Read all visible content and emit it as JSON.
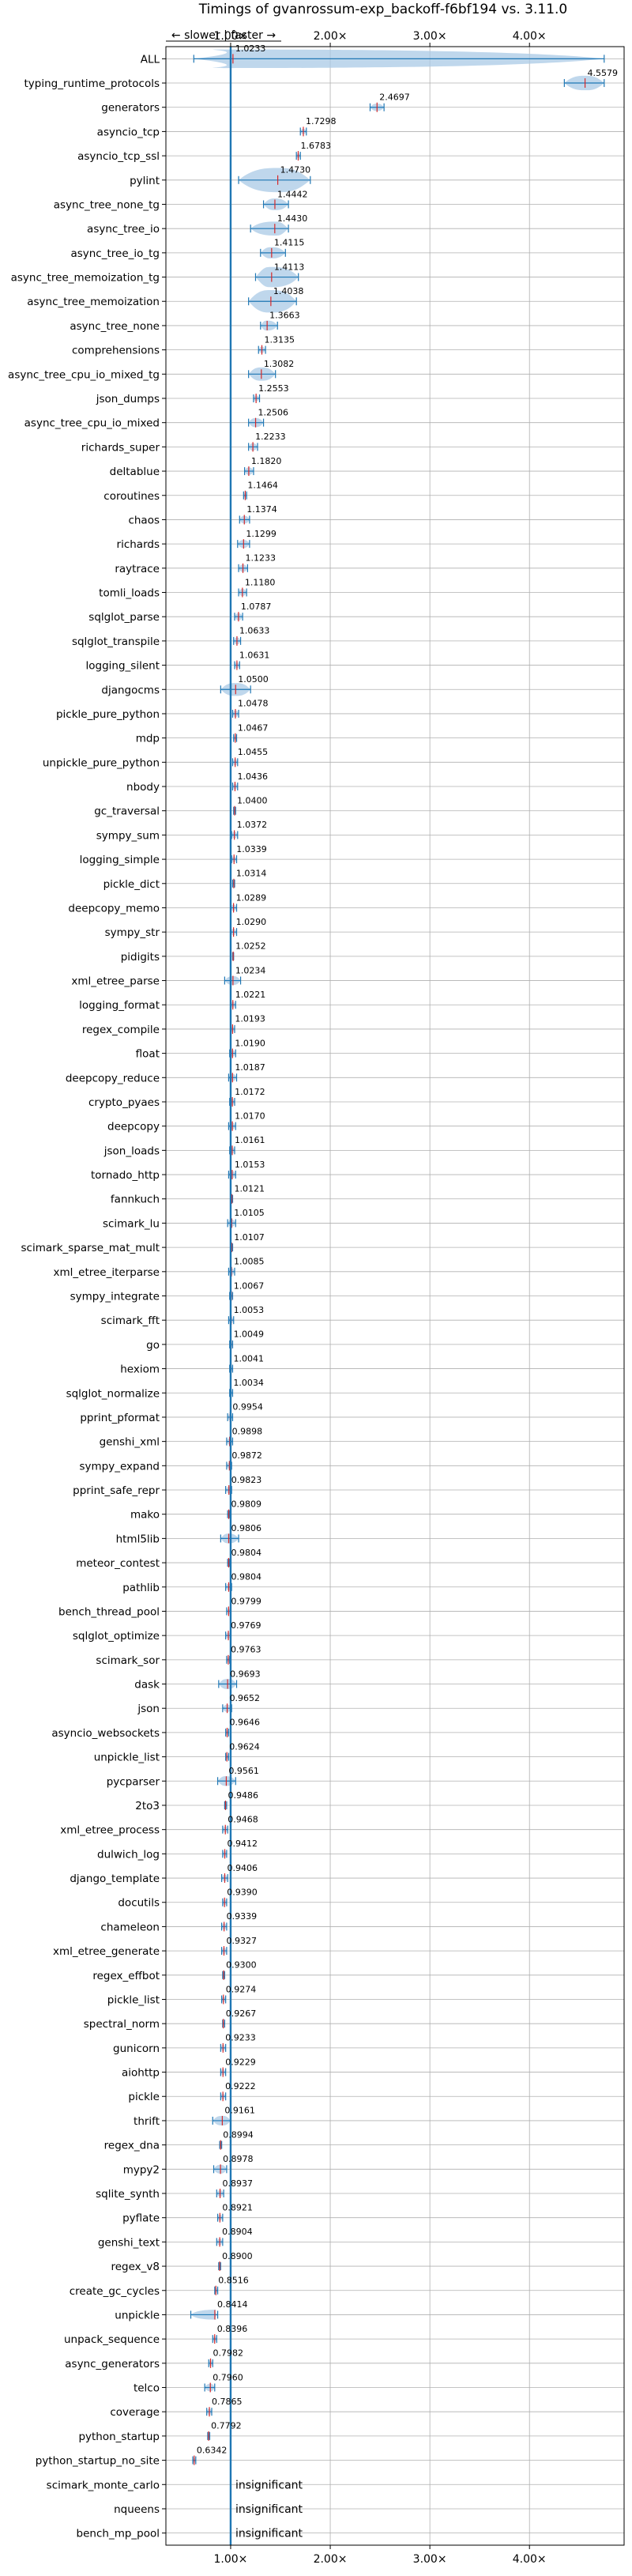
{
  "chart_data": {
    "type": "violin",
    "title": "Timings of gvanrossum-exp_backoff-f6bf194 vs. 3.11.0",
    "direction_label": "← slower | faster →",
    "x_ticks": [
      {
        "value": 1,
        "label": "1.00×"
      },
      {
        "value": 2,
        "label": "2.00×"
      },
      {
        "value": 3,
        "label": "3.00×"
      },
      {
        "value": 4,
        "label": "4.00×"
      }
    ],
    "xlim": [
      0.35,
      4.95
    ],
    "reference_line": 1.0,
    "grid": true,
    "insignificant_label": "insignificant",
    "benchmarks": [
      {
        "name": "ALL",
        "value": 1.0233,
        "label": "1.0233",
        "lo": 0.63,
        "hi": 4.75,
        "spread": 0.09
      },
      {
        "name": "typing_runtime_protocols",
        "value": 4.5579,
        "label": "4.5579",
        "lo": 4.35,
        "hi": 4.75,
        "spread": 0.14
      },
      {
        "name": "generators",
        "value": 2.4697,
        "label": "2.4697",
        "lo": 2.4,
        "hi": 2.54,
        "spread": 0.07
      },
      {
        "name": "asyncio_tcp",
        "value": 1.7298,
        "label": "1.7298",
        "lo": 1.7,
        "hi": 1.76,
        "spread": 0.04
      },
      {
        "name": "asyncio_tcp_ssl",
        "value": 1.6783,
        "label": "1.6783",
        "lo": 1.66,
        "hi": 1.7,
        "spread": 0.03
      },
      {
        "name": "pylint",
        "value": 1.473,
        "label": "1.4730",
        "lo": 1.08,
        "hi": 1.8,
        "spread": 0.3
      },
      {
        "name": "async_tree_none_tg",
        "value": 1.4442,
        "label": "1.4442",
        "lo": 1.33,
        "hi": 1.58,
        "spread": 0.16
      },
      {
        "name": "async_tree_io",
        "value": 1.443,
        "label": "1.4430",
        "lo": 1.2,
        "hi": 1.58,
        "spread": 0.14
      },
      {
        "name": "async_tree_io_tg",
        "value": 1.4115,
        "label": "1.4115",
        "lo": 1.3,
        "hi": 1.55,
        "spread": 0.14
      },
      {
        "name": "async_tree_memoization_tg",
        "value": 1.4113,
        "label": "1.4113",
        "lo": 1.25,
        "hi": 1.68,
        "spread": 0.28
      },
      {
        "name": "async_tree_memoization",
        "value": 1.4038,
        "label": "1.4038",
        "lo": 1.18,
        "hi": 1.66,
        "spread": 0.3
      },
      {
        "name": "async_tree_none",
        "value": 1.3663,
        "label": "1.3663",
        "lo": 1.3,
        "hi": 1.47,
        "spread": 0.16
      },
      {
        "name": "comprehensions",
        "value": 1.3135,
        "label": "1.3135",
        "lo": 1.28,
        "hi": 1.35,
        "spread": 0.08
      },
      {
        "name": "async_tree_cpu_io_mixed_tg",
        "value": 1.3082,
        "label": "1.3082",
        "lo": 1.18,
        "hi": 1.45,
        "spread": 0.2
      },
      {
        "name": "json_dumps",
        "value": 1.2553,
        "label": "1.2553",
        "lo": 1.23,
        "hi": 1.29,
        "spread": 0.07
      },
      {
        "name": "async_tree_cpu_io_mixed",
        "value": 1.2506,
        "label": "1.2506",
        "lo": 1.18,
        "hi": 1.33,
        "spread": 0.14
      },
      {
        "name": "richards_super",
        "value": 1.2233,
        "label": "1.2233",
        "lo": 1.18,
        "hi": 1.27,
        "spread": 0.12
      },
      {
        "name": "deltablue",
        "value": 1.182,
        "label": "1.1820",
        "lo": 1.14,
        "hi": 1.23,
        "spread": 0.12
      },
      {
        "name": "coroutines",
        "value": 1.1464,
        "label": "1.1464",
        "lo": 1.13,
        "hi": 1.16,
        "spread": 0.05
      },
      {
        "name": "chaos",
        "value": 1.1374,
        "label": "1.1374",
        "lo": 1.09,
        "hi": 1.19,
        "spread": 0.12
      },
      {
        "name": "richards",
        "value": 1.1299,
        "label": "1.1299",
        "lo": 1.07,
        "hi": 1.19,
        "spread": 0.12
      },
      {
        "name": "raytrace",
        "value": 1.1233,
        "label": "1.1233",
        "lo": 1.08,
        "hi": 1.17,
        "spread": 0.12
      },
      {
        "name": "tomli_loads",
        "value": 1.118,
        "label": "1.1180",
        "lo": 1.08,
        "hi": 1.16,
        "spread": 0.12
      },
      {
        "name": "sqlglot_parse",
        "value": 1.0787,
        "label": "1.0787",
        "lo": 1.04,
        "hi": 1.12,
        "spread": 0.12
      },
      {
        "name": "sqlglot_transpile",
        "value": 1.0633,
        "label": "1.0633",
        "lo": 1.03,
        "hi": 1.1,
        "spread": 0.12
      },
      {
        "name": "logging_silent",
        "value": 1.0631,
        "label": "1.0631",
        "lo": 1.04,
        "hi": 1.09,
        "spread": 0.08
      },
      {
        "name": "djangocms",
        "value": 1.05,
        "label": "1.0500",
        "lo": 0.9,
        "hi": 1.2,
        "spread": 0.16
      },
      {
        "name": "pickle_pure_python",
        "value": 1.0478,
        "label": "1.0478",
        "lo": 1.02,
        "hi": 1.08,
        "spread": 0.1
      },
      {
        "name": "mdp",
        "value": 1.0467,
        "label": "1.0467",
        "lo": 1.03,
        "hi": 1.06,
        "spread": 0.06
      },
      {
        "name": "unpickle_pure_python",
        "value": 1.0455,
        "label": "1.0455",
        "lo": 1.02,
        "hi": 1.07,
        "spread": 0.1
      },
      {
        "name": "nbody",
        "value": 1.0436,
        "label": "1.0436",
        "lo": 1.02,
        "hi": 1.07,
        "spread": 0.08
      },
      {
        "name": "gc_traversal",
        "value": 1.04,
        "label": "1.0400",
        "lo": 1.03,
        "hi": 1.05,
        "spread": 0.04
      },
      {
        "name": "sympy_sum",
        "value": 1.0372,
        "label": "1.0372",
        "lo": 1.01,
        "hi": 1.07,
        "spread": 0.1
      },
      {
        "name": "logging_simple",
        "value": 1.0339,
        "label": "1.0339",
        "lo": 1.01,
        "hi": 1.06,
        "spread": 0.08
      },
      {
        "name": "pickle_dict",
        "value": 1.0314,
        "label": "1.0314",
        "lo": 1.02,
        "hi": 1.04,
        "spread": 0.04
      },
      {
        "name": "deepcopy_memo",
        "value": 1.0289,
        "label": "1.0289",
        "lo": 1.0,
        "hi": 1.06,
        "spread": 0.1
      },
      {
        "name": "sympy_str",
        "value": 1.029,
        "label": "1.0290",
        "lo": 1.0,
        "hi": 1.06,
        "spread": 0.1
      },
      {
        "name": "pidigits",
        "value": 1.0252,
        "label": "1.0252",
        "lo": 1.02,
        "hi": 1.03,
        "spread": 0.03
      },
      {
        "name": "xml_etree_parse",
        "value": 1.0234,
        "label": "1.0234",
        "lo": 0.94,
        "hi": 1.1,
        "spread": 0.12
      },
      {
        "name": "logging_format",
        "value": 1.0221,
        "label": "1.0221",
        "lo": 1.0,
        "hi": 1.05,
        "spread": 0.08
      },
      {
        "name": "regex_compile",
        "value": 1.0193,
        "label": "1.0193",
        "lo": 1.0,
        "hi": 1.04,
        "spread": 0.08
      },
      {
        "name": "float",
        "value": 1.019,
        "label": "1.0190",
        "lo": 0.99,
        "hi": 1.05,
        "spread": 0.1
      },
      {
        "name": "deepcopy_reduce",
        "value": 1.0187,
        "label": "1.0187",
        "lo": 0.98,
        "hi": 1.06,
        "spread": 0.12
      },
      {
        "name": "crypto_pyaes",
        "value": 1.0172,
        "label": "1.0172",
        "lo": 0.99,
        "hi": 1.04,
        "spread": 0.1
      },
      {
        "name": "deepcopy",
        "value": 1.017,
        "label": "1.0170",
        "lo": 0.98,
        "hi": 1.05,
        "spread": 0.1
      },
      {
        "name": "json_loads",
        "value": 1.0161,
        "label": "1.0161",
        "lo": 0.99,
        "hi": 1.04,
        "spread": 0.1
      },
      {
        "name": "tornado_http",
        "value": 1.0153,
        "label": "1.0153",
        "lo": 0.98,
        "hi": 1.05,
        "spread": 0.12
      },
      {
        "name": "fannkuch",
        "value": 1.0121,
        "label": "1.0121",
        "lo": 1.0,
        "hi": 1.02,
        "spread": 0.06
      },
      {
        "name": "scimark_lu",
        "value": 1.0105,
        "label": "1.0105",
        "lo": 0.97,
        "hi": 1.05,
        "spread": 0.12
      },
      {
        "name": "scimark_sparse_mat_mult",
        "value": 1.0107,
        "label": "1.0107",
        "lo": 1.0,
        "hi": 1.02,
        "spread": 0.04
      },
      {
        "name": "xml_etree_iterparse",
        "value": 1.0085,
        "label": "1.0085",
        "lo": 0.98,
        "hi": 1.04,
        "spread": 0.1
      },
      {
        "name": "sympy_integrate",
        "value": 1.0067,
        "label": "1.0067",
        "lo": 0.99,
        "hi": 1.02,
        "spread": 0.06
      },
      {
        "name": "scimark_fft",
        "value": 1.0053,
        "label": "1.0053",
        "lo": 0.98,
        "hi": 1.03,
        "spread": 0.1
      },
      {
        "name": "go",
        "value": 1.0049,
        "label": "1.0049",
        "lo": 0.99,
        "hi": 1.02,
        "spread": 0.08
      },
      {
        "name": "hexiom",
        "value": 1.0041,
        "label": "1.0041",
        "lo": 0.99,
        "hi": 1.02,
        "spread": 0.06
      },
      {
        "name": "sqlglot_normalize",
        "value": 1.0034,
        "label": "1.0034",
        "lo": 0.99,
        "hi": 1.02,
        "spread": 0.06
      },
      {
        "name": "pprint_pformat",
        "value": 0.9954,
        "label": "0.9954",
        "lo": 0.97,
        "hi": 1.02,
        "spread": 0.1
      },
      {
        "name": "genshi_xml",
        "value": 0.9898,
        "label": "0.9898",
        "lo": 0.96,
        "hi": 1.02,
        "spread": 0.1
      },
      {
        "name": "sympy_expand",
        "value": 0.9872,
        "label": "0.9872",
        "lo": 0.96,
        "hi": 1.01,
        "spread": 0.08
      },
      {
        "name": "pprint_safe_repr",
        "value": 0.9823,
        "label": "0.9823",
        "lo": 0.95,
        "hi": 1.01,
        "spread": 0.1
      },
      {
        "name": "mako",
        "value": 0.9809,
        "label": "0.9809",
        "lo": 0.97,
        "hi": 0.99,
        "spread": 0.05
      },
      {
        "name": "html5lib",
        "value": 0.9806,
        "label": "0.9806",
        "lo": 0.9,
        "hi": 1.08,
        "spread": 0.14
      },
      {
        "name": "meteor_contest",
        "value": 0.9804,
        "label": "0.9804",
        "lo": 0.97,
        "hi": 0.99,
        "spread": 0.05
      },
      {
        "name": "pathlib",
        "value": 0.9804,
        "label": "0.9804",
        "lo": 0.95,
        "hi": 1.01,
        "spread": 0.1
      },
      {
        "name": "bench_thread_pool",
        "value": 0.9799,
        "label": "0.9799",
        "lo": 0.96,
        "hi": 1.0,
        "spread": 0.06
      },
      {
        "name": "sqlglot_optimize",
        "value": 0.9769,
        "label": "0.9769",
        "lo": 0.95,
        "hi": 1.0,
        "spread": 0.1
      },
      {
        "name": "scimark_sor",
        "value": 0.9763,
        "label": "0.9763",
        "lo": 0.96,
        "hi": 0.99,
        "spread": 0.06
      },
      {
        "name": "dask",
        "value": 0.9693,
        "label": "0.9693",
        "lo": 0.88,
        "hi": 1.06,
        "spread": 0.16
      },
      {
        "name": "json",
        "value": 0.9652,
        "label": "0.9652",
        "lo": 0.92,
        "hi": 1.01,
        "spread": 0.12
      },
      {
        "name": "asyncio_websockets",
        "value": 0.9646,
        "label": "0.9646",
        "lo": 0.95,
        "hi": 0.98,
        "spread": 0.06
      },
      {
        "name": "unpickle_list",
        "value": 0.9624,
        "label": "0.9624",
        "lo": 0.95,
        "hi": 0.98,
        "spread": 0.06
      },
      {
        "name": "pycparser",
        "value": 0.9561,
        "label": "0.9561",
        "lo": 0.87,
        "hi": 1.05,
        "spread": 0.14
      },
      {
        "name": "2to3",
        "value": 0.9486,
        "label": "0.9486",
        "lo": 0.94,
        "hi": 0.96,
        "spread": 0.04
      },
      {
        "name": "xml_etree_process",
        "value": 0.9468,
        "label": "0.9468",
        "lo": 0.92,
        "hi": 0.97,
        "spread": 0.1
      },
      {
        "name": "dulwich_log",
        "value": 0.9412,
        "label": "0.9412",
        "lo": 0.92,
        "hi": 0.96,
        "spread": 0.08
      },
      {
        "name": "django_template",
        "value": 0.9406,
        "label": "0.9406",
        "lo": 0.91,
        "hi": 0.97,
        "spread": 0.1
      },
      {
        "name": "docutils",
        "value": 0.939,
        "label": "0.9390",
        "lo": 0.92,
        "hi": 0.96,
        "spread": 0.08
      },
      {
        "name": "chameleon",
        "value": 0.9339,
        "label": "0.9339",
        "lo": 0.91,
        "hi": 0.96,
        "spread": 0.1
      },
      {
        "name": "xml_etree_generate",
        "value": 0.9327,
        "label": "0.9327",
        "lo": 0.91,
        "hi": 0.96,
        "spread": 0.1
      },
      {
        "name": "regex_effbot",
        "value": 0.93,
        "label": "0.9300",
        "lo": 0.92,
        "hi": 0.94,
        "spread": 0.05
      },
      {
        "name": "pickle_list",
        "value": 0.9274,
        "label": "0.9274",
        "lo": 0.91,
        "hi": 0.95,
        "spread": 0.08
      },
      {
        "name": "spectral_norm",
        "value": 0.9267,
        "label": "0.9267",
        "lo": 0.92,
        "hi": 0.94,
        "spread": 0.04
      },
      {
        "name": "gunicorn",
        "value": 0.9233,
        "label": "0.9233",
        "lo": 0.9,
        "hi": 0.95,
        "spread": 0.1
      },
      {
        "name": "aiohttp",
        "value": 0.9229,
        "label": "0.9229",
        "lo": 0.9,
        "hi": 0.95,
        "spread": 0.1
      },
      {
        "name": "pickle",
        "value": 0.9222,
        "label": "0.9222",
        "lo": 0.9,
        "hi": 0.95,
        "spread": 0.08
      },
      {
        "name": "thrift",
        "value": 0.9161,
        "label": "0.9161",
        "lo": 0.82,
        "hi": 1.0,
        "spread": 0.14
      },
      {
        "name": "regex_dna",
        "value": 0.8994,
        "label": "0.8994",
        "lo": 0.89,
        "hi": 0.91,
        "spread": 0.03
      },
      {
        "name": "mypy2",
        "value": 0.8978,
        "label": "0.8978",
        "lo": 0.83,
        "hi": 0.96,
        "spread": 0.14
      },
      {
        "name": "sqlite_synth",
        "value": 0.8937,
        "label": "0.8937",
        "lo": 0.86,
        "hi": 0.93,
        "spread": 0.1
      },
      {
        "name": "pyflate",
        "value": 0.8921,
        "label": "0.8921",
        "lo": 0.87,
        "hi": 0.92,
        "spread": 0.08
      },
      {
        "name": "genshi_text",
        "value": 0.8904,
        "label": "0.8904",
        "lo": 0.86,
        "hi": 0.92,
        "spread": 0.1
      },
      {
        "name": "regex_v8",
        "value": 0.89,
        "label": "0.8900",
        "lo": 0.88,
        "hi": 0.9,
        "spread": 0.03
      },
      {
        "name": "create_gc_cycles",
        "value": 0.8516,
        "label": "0.8516",
        "lo": 0.84,
        "hi": 0.87,
        "spread": 0.06
      },
      {
        "name": "unpickle",
        "value": 0.8414,
        "label": "0.8414",
        "lo": 0.6,
        "hi": 0.87,
        "spread": 0.08
      },
      {
        "name": "unpack_sequence",
        "value": 0.8396,
        "label": "0.8396",
        "lo": 0.82,
        "hi": 0.86,
        "spread": 0.08
      },
      {
        "name": "async_generators",
        "value": 0.7982,
        "label": "0.7982",
        "lo": 0.78,
        "hi": 0.82,
        "spread": 0.08
      },
      {
        "name": "telco",
        "value": 0.796,
        "label": "0.7960",
        "lo": 0.74,
        "hi": 0.84,
        "spread": 0.12
      },
      {
        "name": "coverage",
        "value": 0.7865,
        "label": "0.7865",
        "lo": 0.76,
        "hi": 0.81,
        "spread": 0.1
      },
      {
        "name": "python_startup",
        "value": 0.7792,
        "label": "0.7792",
        "lo": 0.77,
        "hi": 0.79,
        "spread": 0.04
      },
      {
        "name": "python_startup_no_site",
        "value": 0.6342,
        "label": "0.6342",
        "lo": 0.62,
        "hi": 0.65,
        "spread": 0.04
      },
      {
        "name": "scimark_monte_carlo",
        "value": null,
        "label": "insignificant"
      },
      {
        "name": "nqueens",
        "value": null,
        "label": "insignificant"
      },
      {
        "name": "bench_mp_pool",
        "value": null,
        "label": "insignificant"
      }
    ],
    "colors": {
      "violin_fill": "#a9c9e6",
      "bar": "#1f77b4",
      "median": "#d62728",
      "grid": "#b0b0b0",
      "axis": "#000000"
    }
  }
}
